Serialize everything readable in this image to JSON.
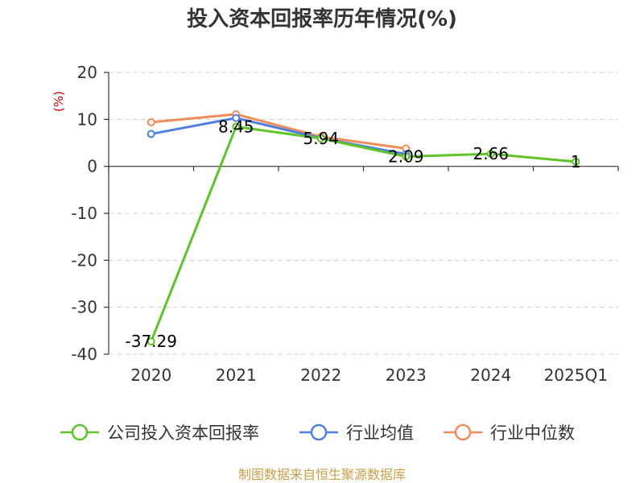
{
  "chart_data": {
    "type": "line",
    "title": "投入资本回报率历年情况(%)",
    "ylabel": "(%)",
    "xlabel": "",
    "categories": [
      "2020",
      "2021",
      "2022",
      "2023",
      "2024",
      "2025Q1"
    ],
    "ylim": [
      -40,
      20
    ],
    "yticks": [
      20,
      10,
      0,
      -10,
      -20,
      -30,
      -40
    ],
    "grid": true,
    "legend_position": "bottom",
    "series": [
      {
        "name": "公司投入资本回报率",
        "color": "#5fc32a",
        "values": [
          -37.29,
          8.45,
          5.94,
          2.09,
          2.66,
          1
        ],
        "labels": [
          "-37.29",
          "8.45",
          "5.94",
          "2.09",
          "2.66",
          "1"
        ]
      },
      {
        "name": "行业均值",
        "color": "#4f7ee0",
        "values": [
          6.9,
          10.3,
          6.0,
          2.6,
          null,
          null
        ]
      },
      {
        "name": "行业中位数",
        "color": "#f08c5a",
        "values": [
          9.4,
          11.1,
          6.3,
          3.8,
          null,
          null
        ]
      }
    ],
    "source": "制图数据来自恒生聚源数据库"
  }
}
